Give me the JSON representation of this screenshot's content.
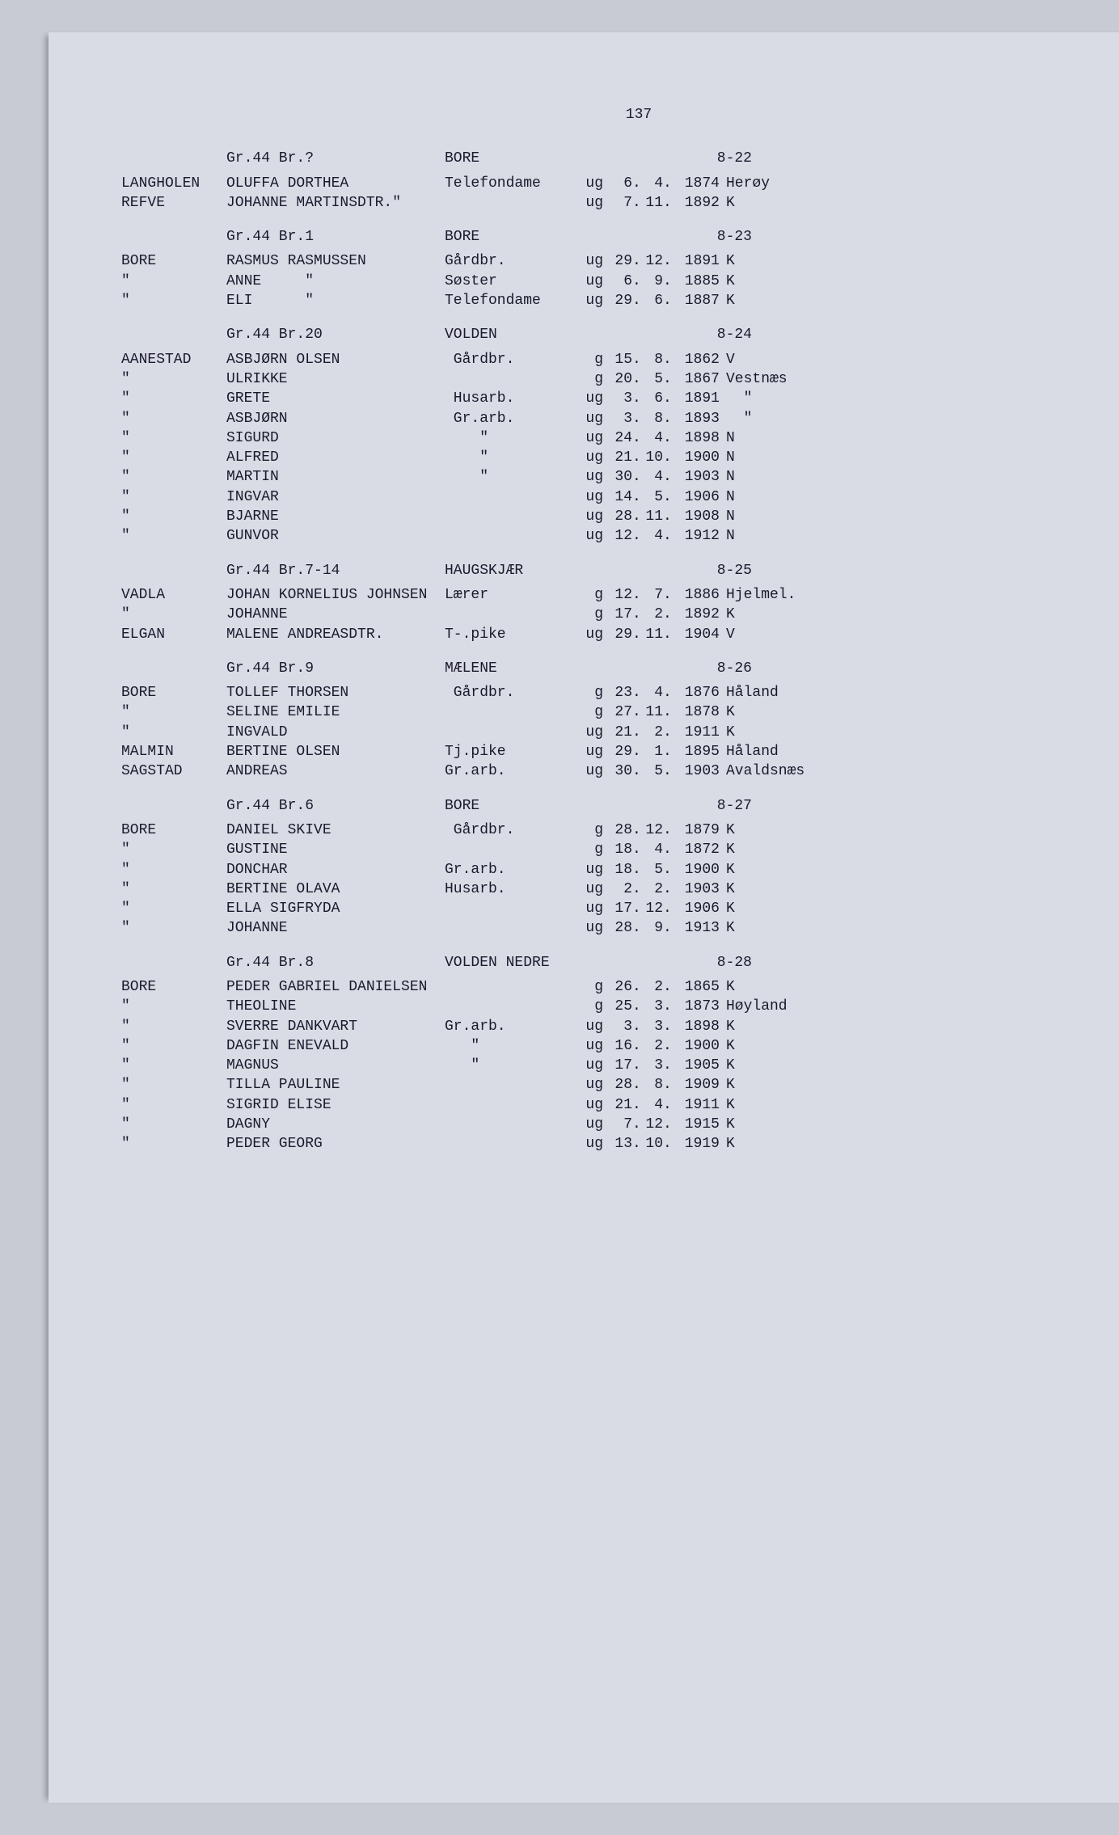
{
  "page_number": "137",
  "colors": {
    "background": "#c8cad4",
    "paper": "#dadce5",
    "text": "#1a1a2e"
  },
  "font": {
    "family_note": "monospace typewriter",
    "size_pt_estimate": 13
  },
  "sections": [
    {
      "header": {
        "grbr": "Gr.44 Br.?",
        "farm": "BORE",
        "code": "8-22"
      },
      "rows": [
        {
          "surname": "LANGHOLEN",
          "name": "OLUFFA DORTHEA",
          "occ": "Telefondame",
          "ms": "ug",
          "day": "6",
          "mon": "4",
          "year": "1874",
          "place": "Herøy"
        },
        {
          "surname": "REFVE",
          "name": "JOHANNE MARTINSDTR.\"",
          "occ": "",
          "ms": "ug",
          "day": "7",
          "mon": "11",
          "year": "1892",
          "place": "K"
        }
      ]
    },
    {
      "header": {
        "grbr": "Gr.44 Br.1",
        "farm": "BORE",
        "code": "8-23"
      },
      "rows": [
        {
          "surname": "BORE",
          "name": "RASMUS RASMUSSEN",
          "occ": "Gårdbr.",
          "ms": "ug",
          "day": "29",
          "mon": "12",
          "year": "1891",
          "place": "K"
        },
        {
          "surname": "\"",
          "name": "ANNE     \"",
          "occ": "Søster",
          "ms": "ug",
          "day": "6",
          "mon": "9",
          "year": "1885",
          "place": "K"
        },
        {
          "surname": "\"",
          "name": "ELI      \"",
          "occ": "Telefondame",
          "ms": "ug",
          "day": "29",
          "mon": "6",
          "year": "1887",
          "place": "K"
        }
      ]
    },
    {
      "header": {
        "grbr": "Gr.44 Br.20",
        "farm": "VOLDEN",
        "code": "8-24"
      },
      "rows": [
        {
          "surname": "AANESTAD",
          "name": "ASBJØRN OLSEN",
          "occ": " Gårdbr.",
          "ms": "g",
          "day": "15",
          "mon": "8",
          "year": "1862",
          "place": "V"
        },
        {
          "surname": "\"",
          "name": "ULRIKKE",
          "occ": "",
          "ms": "g",
          "day": "20",
          "mon": "5",
          "year": "1867",
          "place": "Vestnæs"
        },
        {
          "surname": "\"",
          "name": "GRETE",
          "occ": " Husarb.",
          "ms": "ug",
          "day": "3",
          "mon": "6",
          "year": "1891",
          "place": "  \""
        },
        {
          "surname": "\"",
          "name": "ASBJØRN",
          "occ": " Gr.arb.",
          "ms": "ug",
          "day": "3",
          "mon": "8",
          "year": "1893",
          "place": "  \""
        },
        {
          "surname": "\"",
          "name": "SIGURD",
          "occ": "    \"",
          "ms": "ug",
          "day": "24",
          "mon": "4",
          "year": "1898",
          "place": "N"
        },
        {
          "surname": "\"",
          "name": "ALFRED",
          "occ": "    \"",
          "ms": "ug",
          "day": "21",
          "mon": "10",
          "year": "1900",
          "place": "N"
        },
        {
          "surname": "\"",
          "name": "MARTIN",
          "occ": "    \"",
          "ms": "ug",
          "day": "30",
          "mon": "4",
          "year": "1903",
          "place": "N"
        },
        {
          "surname": "\"",
          "name": "INGVAR",
          "occ": "",
          "ms": "ug",
          "day": "14",
          "mon": "5",
          "year": "1906",
          "place": "N"
        },
        {
          "surname": "\"",
          "name": "BJARNE",
          "occ": "",
          "ms": "ug",
          "day": "28",
          "mon": "11",
          "year": "1908",
          "place": "N"
        },
        {
          "surname": "\"",
          "name": "GUNVOR",
          "occ": "",
          "ms": "ug",
          "day": "12",
          "mon": "4",
          "year": "1912",
          "place": "N"
        }
      ]
    },
    {
      "header": {
        "grbr": "Gr.44 Br.7-14",
        "farm": "HAUGSKJÆR",
        "code": "8-25"
      },
      "rows": [
        {
          "surname": "VADLA",
          "name": "JOHAN KORNELIUS JOHNSEN",
          "occ": "Lærer",
          "ms": "g",
          "day": "12",
          "mon": "7",
          "year": "1886",
          "place": "Hjelmel."
        },
        {
          "surname": "\"",
          "name": "JOHANNE",
          "occ": "",
          "ms": "g",
          "day": "17",
          "mon": "2",
          "year": "1892",
          "place": "K"
        },
        {
          "surname": "ELGAN",
          "name": "MALENE ANDREASDTR.",
          "occ": "T-.pike",
          "ms": "ug",
          "day": "29",
          "mon": "11",
          "year": "1904",
          "place": "V"
        }
      ]
    },
    {
      "header": {
        "grbr": "Gr.44 Br.9",
        "farm": "MÆLENE",
        "code": "8-26"
      },
      "rows": [
        {
          "surname": "BORE",
          "name": "TOLLEF THORSEN",
          "occ": " Gårdbr.",
          "ms": "g",
          "day": "23",
          "mon": "4",
          "year": "1876",
          "place": "Håland"
        },
        {
          "surname": "\"",
          "name": "SELINE EMILIE",
          "occ": "",
          "ms": "g",
          "day": "27",
          "mon": "11",
          "year": "1878",
          "place": "K"
        },
        {
          "surname": "\"",
          "name": "INGVALD",
          "occ": "",
          "ms": "ug",
          "day": "21",
          "mon": "2",
          "year": "1911",
          "place": "K"
        },
        {
          "surname": "MALMIN",
          "name": "BERTINE OLSEN",
          "occ": "Tj.pike",
          "ms": "ug",
          "day": "29",
          "mon": "1",
          "year": "1895",
          "place": "Håland"
        },
        {
          "surname": "SAGSTAD",
          "name": "ANDREAS",
          "occ": "Gr.arb.",
          "ms": "ug",
          "day": "30",
          "mon": "5",
          "year": "1903",
          "place": "Avaldsnæs"
        }
      ]
    },
    {
      "header": {
        "grbr": "Gr.44 Br.6",
        "farm": "BORE",
        "code": "8-27"
      },
      "rows": [
        {
          "surname": "BORE",
          "name": "DANIEL SKIVE",
          "occ": " Gårdbr.",
          "ms": "g",
          "day": "28",
          "mon": "12",
          "year": "1879",
          "place": "K"
        },
        {
          "surname": "\"",
          "name": "GUSTINE",
          "occ": "",
          "ms": "g",
          "day": "18",
          "mon": "4",
          "year": "1872",
          "place": "K"
        },
        {
          "surname": "\"",
          "name": "DONCHAR",
          "occ": "Gr.arb.",
          "ms": "ug",
          "day": "18",
          "mon": "5",
          "year": "1900",
          "place": "K"
        },
        {
          "surname": "\"",
          "name": "BERTINE OLAVA",
          "occ": "Husarb.",
          "ms": "ug",
          "day": "2",
          "mon": "2",
          "year": "1903",
          "place": "K"
        },
        {
          "surname": "\"",
          "name": "ELLA SIGFRYDA",
          "occ": "",
          "ms": "ug",
          "day": "17",
          "mon": "12",
          "year": "1906",
          "place": "K"
        },
        {
          "surname": "\"",
          "name": "JOHANNE",
          "occ": "",
          "ms": "ug",
          "day": "28",
          "mon": "9",
          "year": "1913",
          "place": "K"
        }
      ]
    },
    {
      "header": {
        "grbr": "Gr.44 Br.8",
        "farm": "VOLDEN NEDRE",
        "code": "8-28"
      },
      "rows": [
        {
          "surname": "BORE",
          "name": "PEDER GABRIEL DANIELSEN",
          "occ": "",
          "ms": "g",
          "day": "26",
          "mon": "2",
          "year": "1865",
          "place": "K"
        },
        {
          "surname": "\"",
          "name": "THEOLINE",
          "occ": "",
          "ms": "g",
          "day": "25",
          "mon": "3",
          "year": "1873",
          "place": "Høyland"
        },
        {
          "surname": "\"",
          "name": "SVERRE DANKVART",
          "occ": "Gr.arb.",
          "ms": "ug",
          "day": "3",
          "mon": "3",
          "year": "1898",
          "place": "K"
        },
        {
          "surname": "\"",
          "name": "DAGFIN ENEVALD",
          "occ": "   \"",
          "ms": "ug",
          "day": "16",
          "mon": "2",
          "year": "1900",
          "place": "K"
        },
        {
          "surname": "\"",
          "name": "MAGNUS",
          "occ": "   \"",
          "ms": "ug",
          "day": "17",
          "mon": "3",
          "year": "1905",
          "place": "K"
        },
        {
          "surname": "\"",
          "name": "TILLA PAULINE",
          "occ": "",
          "ms": "ug",
          "day": "28",
          "mon": "8",
          "year": "1909",
          "place": "K"
        },
        {
          "surname": "\"",
          "name": "SIGRID ELISE",
          "occ": "",
          "ms": "ug",
          "day": "21",
          "mon": "4",
          "year": "1911",
          "place": "K"
        },
        {
          "surname": "\"",
          "name": "DAGNY",
          "occ": "",
          "ms": "ug",
          "day": "7",
          "mon": "12",
          "year": "1915",
          "place": "K"
        },
        {
          "surname": "\"",
          "name": "PEDER GEORG",
          "occ": "",
          "ms": "ug",
          "day": "13",
          "mon": "10",
          "year": "1919",
          "place": "K"
        }
      ]
    }
  ]
}
